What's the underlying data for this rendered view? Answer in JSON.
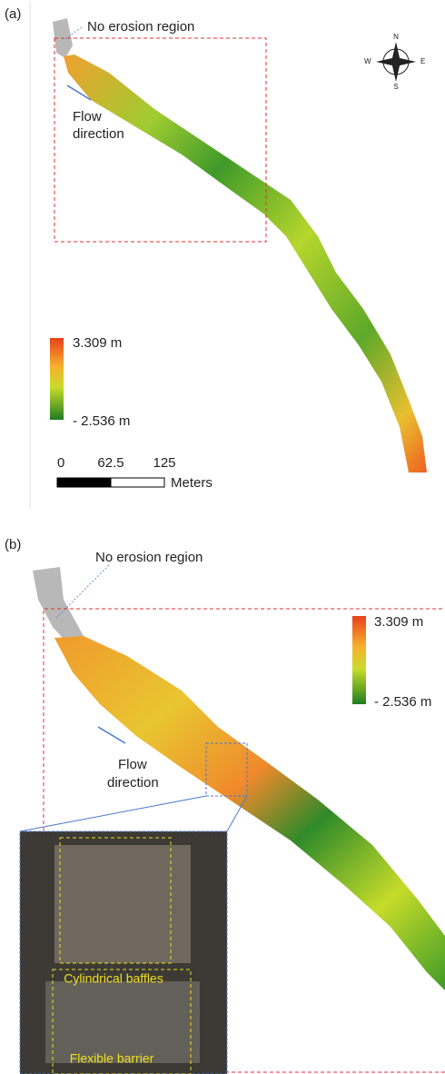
{
  "panel_a": {
    "label": "(a)",
    "no_erosion": "No erosion region",
    "flow": [
      "Flow",
      "direction"
    ],
    "compass": {
      "n": "N",
      "s": "S",
      "e": "E",
      "w": "W"
    },
    "colorbar": {
      "max": "3.309 m",
      "min": "- 2.536 m"
    },
    "scale": {
      "ticks": [
        0,
        62.5,
        125
      ],
      "unit": "Meters"
    }
  },
  "panel_b": {
    "label": "(b)",
    "no_erosion": "No erosion region",
    "flow": [
      "Flow",
      "direction"
    ],
    "colorbar": {
      "max": "3.309 m",
      "min": "- 2.536 m"
    },
    "inset": {
      "baffles": "Cylindrical baffles",
      "barrier": "Flexible barrier"
    }
  }
}
